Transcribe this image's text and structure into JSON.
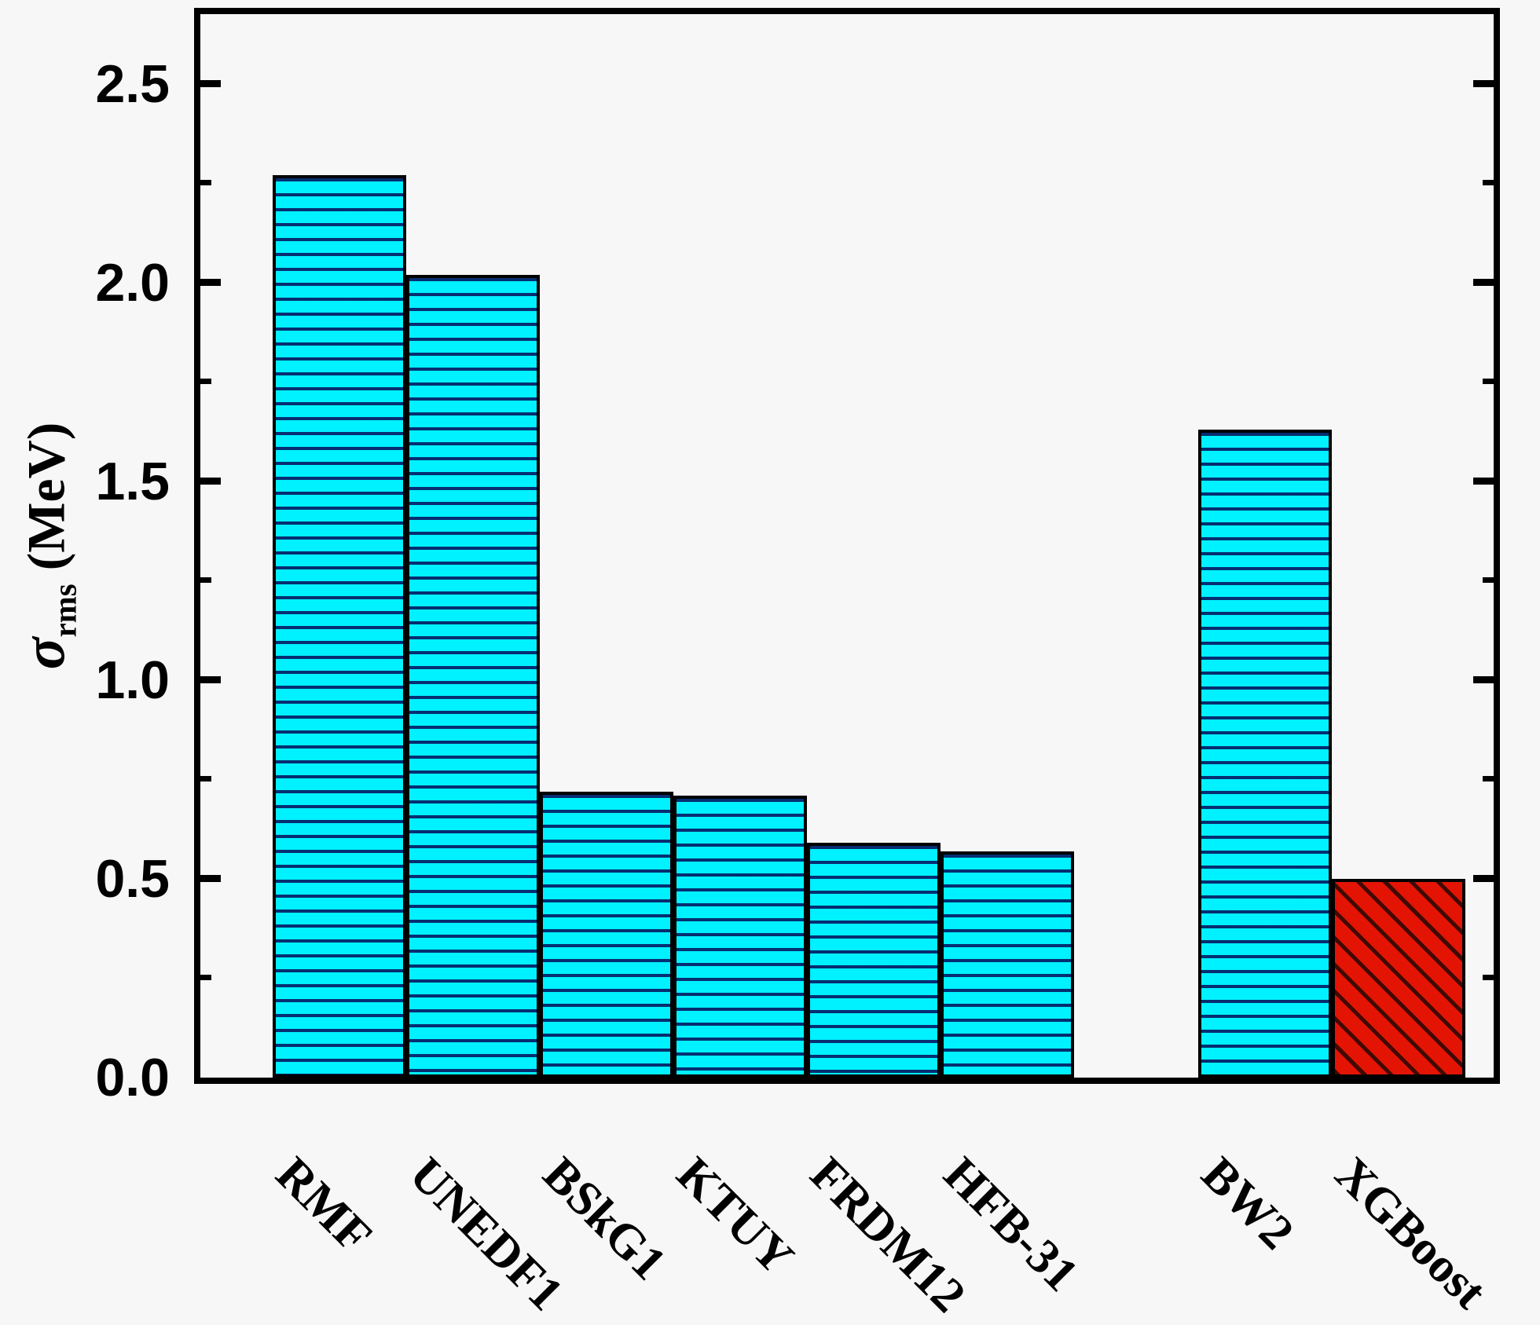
{
  "figure": {
    "background": "#f7f7f7",
    "ylabel": {
      "symbol": "σ",
      "subscript": "rms",
      "unit": "(MeV)"
    }
  },
  "chart_data": {
    "type": "bar",
    "title": "",
    "ylabel": "σ_rms (MeV)",
    "xlabel": "",
    "categories": [
      "RMF",
      "UNEDF1",
      "BSkG1",
      "KTUY",
      "FRDM12",
      "HFB-31",
      "BW2",
      "XGBoost"
    ],
    "values": [
      2.27,
      2.02,
      0.72,
      0.71,
      0.59,
      0.57,
      1.63,
      0.5
    ],
    "bar_styles": [
      "cyan-hatch-horizontal",
      "cyan-hatch-horizontal",
      "cyan-hatch-horizontal",
      "cyan-hatch-horizontal",
      "cyan-hatch-horizontal",
      "cyan-hatch-horizontal",
      "cyan-hatch-horizontal",
      "red-hatch-diagonal"
    ],
    "groups": [
      [
        "RMF",
        "UNEDF1",
        "BSkG1",
        "KTUY",
        "FRDM12",
        "HFB-31"
      ],
      [
        "BW2",
        "XGBoost"
      ]
    ],
    "colors": {
      "bar_cyan": "#00f1ff",
      "cyan_hatch": "#071e64",
      "bar_red": "#e41405",
      "red_hatch": "#230700",
      "edge": "#000000",
      "background": "#f7f7f7"
    },
    "ylim": [
      0,
      2.7
    ],
    "yticks_major": [
      {
        "value": 0.0,
        "label": "0.0"
      },
      {
        "value": 0.5,
        "label": "0.5"
      },
      {
        "value": 1.0,
        "label": "1.0"
      },
      {
        "value": 1.5,
        "label": "1.5"
      },
      {
        "value": 2.0,
        "label": "2.0"
      },
      {
        "value": 2.5,
        "label": "2.5"
      }
    ],
    "yticks_minor": [
      0.25,
      0.75,
      1.25,
      1.75,
      2.25
    ],
    "grid": "off",
    "legend": "none",
    "hatch_horizontal": "-",
    "hatch_diagonal": "\\"
  }
}
